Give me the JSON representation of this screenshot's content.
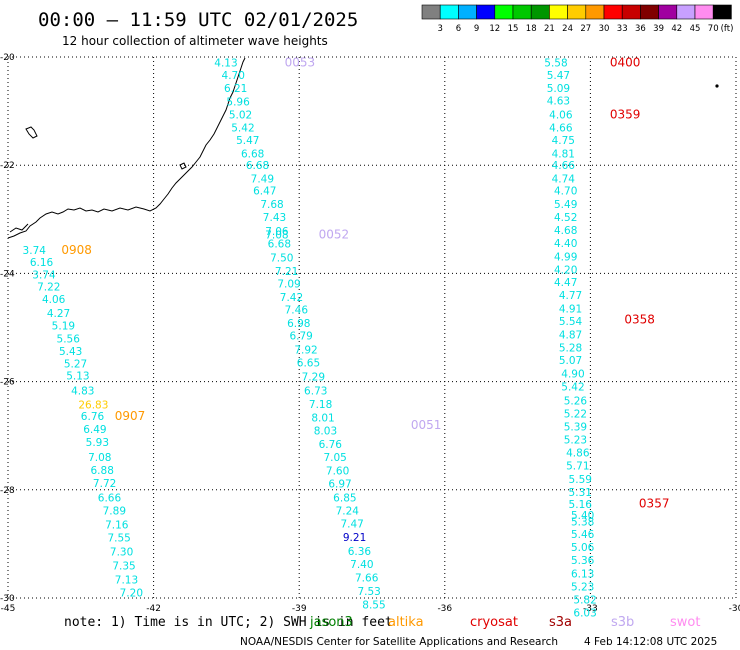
{
  "chart_data": {
    "type": "scatter",
    "title": "00:00 — 11:59 UTC 02/01/2025",
    "subtitle": "12 hour collection of altimeter wave heights",
    "x_axis": {
      "range": [
        -45,
        -30
      ],
      "ticks": [
        "-45",
        "-42",
        "-39",
        "-36",
        "-33",
        "-30"
      ],
      "tick_values": [
        -45,
        -42,
        -39,
        -36,
        -33,
        -30
      ]
    },
    "y_axis": {
      "range": [
        -30,
        -20
      ],
      "ticks": [
        "-20",
        "-22",
        "-24",
        "-26",
        "-28",
        "-30"
      ],
      "tick_values": [
        -20,
        -22,
        -24,
        -26,
        -28,
        -30
      ]
    },
    "grid": true,
    "legend": {
      "placement": "top-right",
      "unit": "(ft)",
      "labels": [
        "3",
        "6",
        "9",
        "12",
        "15",
        "18",
        "21",
        "24",
        "27",
        "30",
        "33",
        "36",
        "39",
        "42",
        "45",
        "70"
      ],
      "colors": [
        "#808080",
        "#00ffff",
        "#00b0ff",
        "#0000ff",
        "#00ff00",
        "#00c800",
        "#009600",
        "#ffff00",
        "#ffcc00",
        "#ff9900",
        "#ff0000",
        "#c80000",
        "#800000",
        "#a000a0",
        "#c8a0ff",
        "#ff8cf0",
        "#000000"
      ]
    },
    "series": [
      {
        "pass_labels": [
          {
            "text": "0908",
            "color": "#ff9900",
            "lon": -43.9,
            "lat": -23.57
          },
          {
            "text": "0907",
            "color": "#ff9900",
            "lon": -42.8,
            "lat": -26.64
          }
        ],
        "points": [
          {
            "lon": -44.7,
            "lat": -23.57,
            "v": "3.74",
            "c": "#00e0e0"
          },
          {
            "lon": -44.55,
            "lat": -23.79,
            "v": "6.16",
            "c": "#00e0e0"
          },
          {
            "lon": -44.5,
            "lat": -24.02,
            "v": "3.74",
            "c": "#00e0e0"
          },
          {
            "lon": -44.4,
            "lat": -24.24,
            "v": "7.22",
            "c": "#00e0e0"
          },
          {
            "lon": -44.3,
            "lat": -24.47,
            "v": "4.06",
            "c": "#00e0e0"
          },
          {
            "lon": -44.2,
            "lat": -24.73,
            "v": "4.27",
            "c": "#00e0e0"
          },
          {
            "lon": -44.1,
            "lat": -24.96,
            "v": "5.19",
            "c": "#00e0e0"
          },
          {
            "lon": -44.0,
            "lat": -25.2,
            "v": "5.56",
            "c": "#00e0e0"
          },
          {
            "lon": -43.95,
            "lat": -25.43,
            "v": "5.43",
            "c": "#00e0e0"
          },
          {
            "lon": -43.85,
            "lat": -25.67,
            "v": "5.27",
            "c": "#00e0e0"
          },
          {
            "lon": -43.8,
            "lat": -25.89,
            "v": "5.13",
            "c": "#00e0e0"
          },
          {
            "lon": -43.7,
            "lat": -26.16,
            "v": "4.83",
            "c": "#00e0e0"
          },
          {
            "lon": -43.55,
            "lat": -26.42,
            "v": "26.83",
            "c": "#ffcc00"
          },
          {
            "lon": -43.5,
            "lat": -26.64,
            "v": "6.76",
            "c": "#00e0e0"
          },
          {
            "lon": -43.45,
            "lat": -26.88,
            "v": "6.49",
            "c": "#00e0e0"
          },
          {
            "lon": -43.4,
            "lat": -27.12,
            "v": "5.93",
            "c": "#00e0e0"
          },
          {
            "lon": -43.35,
            "lat": -27.39,
            "v": "7.08",
            "c": "#00e0e0"
          },
          {
            "lon": -43.3,
            "lat": -27.63,
            "v": "6.88",
            "c": "#00e0e0"
          },
          {
            "lon": -43.25,
            "lat": -27.87,
            "v": "7.72",
            "c": "#00e0e0"
          },
          {
            "lon": -43.15,
            "lat": -28.14,
            "v": "6.66",
            "c": "#00e0e0"
          },
          {
            "lon": -43.05,
            "lat": -28.38,
            "v": "7.89",
            "c": "#00e0e0"
          },
          {
            "lon": -43.0,
            "lat": -28.64,
            "v": "7.16",
            "c": "#00e0e0"
          },
          {
            "lon": -42.95,
            "lat": -28.88,
            "v": "7.55",
            "c": "#00e0e0"
          },
          {
            "lon": -42.9,
            "lat": -29.14,
            "v": "7.30",
            "c": "#00e0e0"
          },
          {
            "lon": -42.85,
            "lat": -29.4,
            "v": "7.35",
            "c": "#00e0e0"
          },
          {
            "lon": -42.8,
            "lat": -29.66,
            "v": "7.13",
            "c": "#00e0e0"
          },
          {
            "lon": -42.7,
            "lat": -29.9,
            "v": "7.20",
            "c": "#00e0e0"
          }
        ]
      },
      {
        "pass_labels": [
          {
            "text": "0053",
            "color": "#c0a8f0",
            "lon": -39.3,
            "lat": -20.1
          },
          {
            "text": "0052",
            "color": "#c0a8f0",
            "lon": -38.6,
            "lat": -23.28
          },
          {
            "text": "0051",
            "color": "#c0a8f0",
            "lon": -36.7,
            "lat": -26.8
          }
        ],
        "points": [
          {
            "lon": -40.75,
            "lat": -20.1,
            "v": "4.13",
            "c": "#00e0e0"
          },
          {
            "lon": -40.6,
            "lat": -20.33,
            "v": "4.70",
            "c": "#00e0e0"
          },
          {
            "lon": -40.55,
            "lat": -20.57,
            "v": "6.21",
            "c": "#00e0e0"
          },
          {
            "lon": -40.5,
            "lat": -20.82,
            "v": "5.96",
            "c": "#00e0e0"
          },
          {
            "lon": -40.45,
            "lat": -21.06,
            "v": "5.02",
            "c": "#00e0e0"
          },
          {
            "lon": -40.4,
            "lat": -21.3,
            "v": "5.42",
            "c": "#00e0e0"
          },
          {
            "lon": -40.3,
            "lat": -21.53,
            "v": "5.47",
            "c": "#00e0e0"
          },
          {
            "lon": -40.2,
            "lat": -21.78,
            "v": "6.68",
            "c": "#00e0e0"
          },
          {
            "lon": -40.1,
            "lat": -22.0,
            "v": "6.68",
            "c": "#00e0e0"
          },
          {
            "lon": -40.0,
            "lat": -22.25,
            "v": "7.49",
            "c": "#00e0e0"
          },
          {
            "lon": -39.95,
            "lat": -22.47,
            "v": "6.47",
            "c": "#00e0e0"
          },
          {
            "lon": -39.8,
            "lat": -22.72,
            "v": "7.68",
            "c": "#00e0e0"
          },
          {
            "lon": -39.75,
            "lat": -22.96,
            "v": "7.43",
            "c": "#00e0e0"
          },
          {
            "lon": -39.7,
            "lat": -23.22,
            "v": "7.06",
            "c": "#00e0e0"
          },
          {
            "lon": -39.7,
            "lat": -23.28,
            "v": "7.08",
            "c": "#00e0e0"
          },
          {
            "lon": -39.65,
            "lat": -23.45,
            "v": "6.68",
            "c": "#00e0e0"
          },
          {
            "lon": -39.6,
            "lat": -23.71,
            "v": "7.50",
            "c": "#00e0e0"
          },
          {
            "lon": -39.5,
            "lat": -23.96,
            "v": "7.21",
            "c": "#00e0e0"
          },
          {
            "lon": -39.45,
            "lat": -24.19,
            "v": "7.09",
            "c": "#00e0e0"
          },
          {
            "lon": -39.4,
            "lat": -24.44,
            "v": "7.42",
            "c": "#00e0e0"
          },
          {
            "lon": -39.3,
            "lat": -24.67,
            "v": "7.46",
            "c": "#00e0e0"
          },
          {
            "lon": -39.25,
            "lat": -24.92,
            "v": "6.98",
            "c": "#00e0e0"
          },
          {
            "lon": -39.2,
            "lat": -25.15,
            "v": "6.79",
            "c": "#00e0e0"
          },
          {
            "lon": -39.1,
            "lat": -25.41,
            "v": "7.92",
            "c": "#00e0e0"
          },
          {
            "lon": -39.05,
            "lat": -25.65,
            "v": "6.65",
            "c": "#00e0e0"
          },
          {
            "lon": -38.95,
            "lat": -25.91,
            "v": "7.29",
            "c": "#00e0e0"
          },
          {
            "lon": -38.9,
            "lat": -26.16,
            "v": "6.73",
            "c": "#00e0e0"
          },
          {
            "lon": -38.8,
            "lat": -26.41,
            "v": "7.18",
            "c": "#00e0e0"
          },
          {
            "lon": -38.75,
            "lat": -26.66,
            "v": "8.01",
            "c": "#00e0e0"
          },
          {
            "lon": -38.7,
            "lat": -26.9,
            "v": "8.03",
            "c": "#00e0e0"
          },
          {
            "lon": -38.6,
            "lat": -27.15,
            "v": "6.76",
            "c": "#00e0e0"
          },
          {
            "lon": -38.5,
            "lat": -27.39,
            "v": "7.05",
            "c": "#00e0e0"
          },
          {
            "lon": -38.45,
            "lat": -27.64,
            "v": "7.60",
            "c": "#00e0e0"
          },
          {
            "lon": -38.4,
            "lat": -27.88,
            "v": "6.97",
            "c": "#00e0e0"
          },
          {
            "lon": -38.3,
            "lat": -28.14,
            "v": "6.85",
            "c": "#00e0e0"
          },
          {
            "lon": -38.25,
            "lat": -28.38,
            "v": "7.24",
            "c": "#00e0e0"
          },
          {
            "lon": -38.15,
            "lat": -28.62,
            "v": "7.47",
            "c": "#00e0e0"
          },
          {
            "lon": -38.1,
            "lat": -28.87,
            "v": "9.21",
            "c": "#0000c8"
          },
          {
            "lon": -38.0,
            "lat": -29.13,
            "v": "6.36",
            "c": "#00e0e0"
          },
          {
            "lon": -37.95,
            "lat": -29.37,
            "v": "7.40",
            "c": "#00e0e0"
          },
          {
            "lon": -37.85,
            "lat": -29.62,
            "v": "7.66",
            "c": "#00e0e0"
          },
          {
            "lon": -37.8,
            "lat": -29.87,
            "v": "7.53",
            "c": "#00e0e0"
          },
          {
            "lon": -37.7,
            "lat": -30.12,
            "v": "8.55",
            "c": "#00e0e0"
          }
        ]
      },
      {
        "pass_labels": [
          {
            "text": "0400",
            "color": "#e00000",
            "lon": -32.6,
            "lat": -20.1
          },
          {
            "text": "0359",
            "color": "#e00000",
            "lon": -32.6,
            "lat": -21.06
          },
          {
            "text": "0358",
            "color": "#e00000",
            "lon": -32.3,
            "lat": -24.85
          },
          {
            "text": "0357",
            "color": "#e00000",
            "lon": -32.0,
            "lat": -28.25
          }
        ],
        "points": [
          {
            "lon": -33.95,
            "lat": -20.1,
            "v": "5.58",
            "c": "#00e0e0"
          },
          {
            "lon": -33.9,
            "lat": -20.33,
            "v": "5.47",
            "c": "#00e0e0"
          },
          {
            "lon": -33.9,
            "lat": -20.57,
            "v": "5.09",
            "c": "#00e0e0"
          },
          {
            "lon": -33.9,
            "lat": -20.8,
            "v": "4.63",
            "c": "#00e0e0"
          },
          {
            "lon": -33.85,
            "lat": -21.06,
            "v": "4.06",
            "c": "#00e0e0"
          },
          {
            "lon": -33.85,
            "lat": -21.3,
            "v": "4.66",
            "c": "#00e0e0"
          },
          {
            "lon": -33.8,
            "lat": -21.53,
            "v": "4.75",
            "c": "#00e0e0"
          },
          {
            "lon": -33.8,
            "lat": -21.78,
            "v": "4.81",
            "c": "#00e0e0"
          },
          {
            "lon": -33.8,
            "lat": -22.0,
            "v": "4.66",
            "c": "#00e0e0"
          },
          {
            "lon": -33.8,
            "lat": -22.25,
            "v": "4.74",
            "c": "#00e0e0"
          },
          {
            "lon": -33.75,
            "lat": -22.47,
            "v": "4.70",
            "c": "#00e0e0"
          },
          {
            "lon": -33.75,
            "lat": -22.72,
            "v": "5.49",
            "c": "#00e0e0"
          },
          {
            "lon": -33.75,
            "lat": -22.96,
            "v": "4.52",
            "c": "#00e0e0"
          },
          {
            "lon": -33.75,
            "lat": -23.2,
            "v": "4.68",
            "c": "#00e0e0"
          },
          {
            "lon": -33.75,
            "lat": -23.44,
            "v": "4.40",
            "c": "#00e0e0"
          },
          {
            "lon": -33.75,
            "lat": -23.69,
            "v": "4.99",
            "c": "#00e0e0"
          },
          {
            "lon": -33.75,
            "lat": -23.93,
            "v": "4.20",
            "c": "#00e0e0"
          },
          {
            "lon": -33.75,
            "lat": -24.16,
            "v": "4.47",
            "c": "#00e0e0"
          },
          {
            "lon": -33.65,
            "lat": -24.4,
            "v": "4.77",
            "c": "#00e0e0"
          },
          {
            "lon": -33.65,
            "lat": -24.65,
            "v": "4.91",
            "c": "#00e0e0"
          },
          {
            "lon": -33.65,
            "lat": -24.88,
            "v": "5.54",
            "c": "#00e0e0"
          },
          {
            "lon": -33.65,
            "lat": -25.13,
            "v": "4.87",
            "c": "#00e0e0"
          },
          {
            "lon": -33.65,
            "lat": -25.37,
            "v": "5.28",
            "c": "#00e0e0"
          },
          {
            "lon": -33.65,
            "lat": -25.6,
            "v": "5.07",
            "c": "#00e0e0"
          },
          {
            "lon": -33.6,
            "lat": -25.85,
            "v": "4.90",
            "c": "#00e0e0"
          },
          {
            "lon": -33.6,
            "lat": -26.09,
            "v": "5.42",
            "c": "#00e0e0"
          },
          {
            "lon": -33.55,
            "lat": -26.35,
            "v": "5.26",
            "c": "#00e0e0"
          },
          {
            "lon": -33.55,
            "lat": -26.59,
            "v": "5.22",
            "c": "#00e0e0"
          },
          {
            "lon": -33.55,
            "lat": -26.83,
            "v": "5.39",
            "c": "#00e0e0"
          },
          {
            "lon": -33.55,
            "lat": -27.07,
            "v": "5.23",
            "c": "#00e0e0"
          },
          {
            "lon": -33.5,
            "lat": -27.31,
            "v": "4.86",
            "c": "#00e0e0"
          },
          {
            "lon": -33.5,
            "lat": -27.55,
            "v": "5.71",
            "c": "#00e0e0"
          },
          {
            "lon": -33.45,
            "lat": -27.8,
            "v": "5.59",
            "c": "#00e0e0"
          },
          {
            "lon": -33.45,
            "lat": -28.04,
            "v": "5.31",
            "c": "#00e0e0"
          },
          {
            "lon": -33.45,
            "lat": -28.26,
            "v": "5.16",
            "c": "#00e0e0"
          },
          {
            "lon": -33.4,
            "lat": -28.47,
            "v": "5.40",
            "c": "#00e0e0"
          },
          {
            "lon": -33.4,
            "lat": -28.59,
            "v": "5.38",
            "c": "#00e0e0"
          },
          {
            "lon": -33.4,
            "lat": -28.82,
            "v": "5.46",
            "c": "#00e0e0"
          },
          {
            "lon": -33.4,
            "lat": -29.06,
            "v": "5.06",
            "c": "#00e0e0"
          },
          {
            "lon": -33.4,
            "lat": -29.3,
            "v": "5.36",
            "c": "#00e0e0"
          },
          {
            "lon": -33.4,
            "lat": -29.55,
            "v": "6.13",
            "c": "#00e0e0"
          },
          {
            "lon": -33.4,
            "lat": -29.79,
            "v": "5.23",
            "c": "#00e0e0"
          },
          {
            "lon": -33.35,
            "lat": -30.03,
            "v": "5.82",
            "c": "#00e0e0"
          },
          {
            "lon": -33.35,
            "lat": -30.27,
            "v": "6.03",
            "c": "#00e0e0"
          }
        ]
      }
    ]
  },
  "footer": {
    "note": "note: 1) Time is in UTC; 2) SWH is in feet",
    "satellites": [
      {
        "name": "jason3",
        "color": "#008000"
      },
      {
        "name": "altika",
        "color": "#ff9900"
      },
      {
        "name": "cryosat",
        "color": "#e00000"
      },
      {
        "name": "s3a",
        "color": "#a00000"
      },
      {
        "name": "s3b",
        "color": "#c0a8f0"
      },
      {
        "name": "swot",
        "color": "#ff8cf0"
      }
    ],
    "credit": "NOAA/NESDIS Center for Satellite Applications and Research",
    "timestamp": "4 Feb 14:12:08 UTC 2025"
  }
}
